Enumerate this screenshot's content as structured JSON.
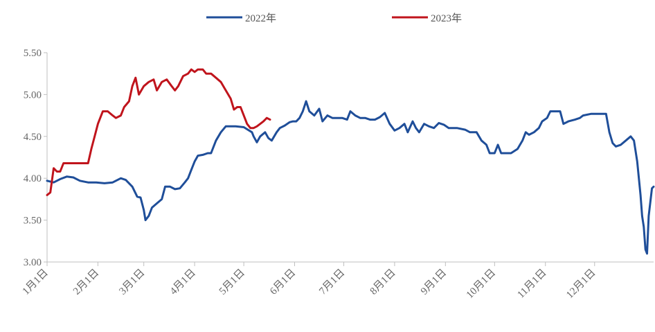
{
  "chart_data": {
    "type": "line",
    "title": "",
    "xlabel": "",
    "ylabel": "",
    "ylim": [
      3.0,
      5.5
    ],
    "yticks": [
      "3.00",
      "3.50",
      "4.00",
      "4.50",
      "5.00",
      "5.50"
    ],
    "xticks": [
      "1月1日",
      "2月1日",
      "3月1日",
      "4月1日",
      "5月1日",
      "6月1日",
      "7月1日",
      "8月1日",
      "9月1日",
      "10月1日",
      "11月1日",
      "12月1日"
    ],
    "grid": false,
    "legend": "top-center",
    "series": [
      {
        "name": "2022年",
        "color": "#1f4e99",
        "points": [
          [
            0,
            3.97
          ],
          [
            4,
            3.95
          ],
          [
            8,
            3.99
          ],
          [
            12,
            4.02
          ],
          [
            16,
            4.01
          ],
          [
            20,
            3.97
          ],
          [
            25,
            3.95
          ],
          [
            30,
            3.95
          ],
          [
            35,
            3.94
          ],
          [
            40,
            3.95
          ],
          [
            45,
            4.0
          ],
          [
            48,
            3.98
          ],
          [
            52,
            3.9
          ],
          [
            55,
            3.78
          ],
          [
            57,
            3.77
          ],
          [
            59,
            3.62
          ],
          [
            60,
            3.5
          ],
          [
            62,
            3.55
          ],
          [
            64,
            3.65
          ],
          [
            67,
            3.7
          ],
          [
            70,
            3.75
          ],
          [
            72,
            3.9
          ],
          [
            75,
            3.9
          ],
          [
            78,
            3.87
          ],
          [
            81,
            3.88
          ],
          [
            84,
            3.95
          ],
          [
            86,
            4.0
          ],
          [
            88,
            4.1
          ],
          [
            90,
            4.2
          ],
          [
            92,
            4.27
          ],
          [
            95,
            4.28
          ],
          [
            98,
            4.3
          ],
          [
            100,
            4.3
          ],
          [
            103,
            4.45
          ],
          [
            106,
            4.55
          ],
          [
            109,
            4.62
          ],
          [
            115,
            4.62
          ],
          [
            120,
            4.61
          ],
          [
            125,
            4.55
          ],
          [
            126,
            4.5
          ],
          [
            128,
            4.43
          ],
          [
            130,
            4.5
          ],
          [
            133,
            4.55
          ],
          [
            135,
            4.48
          ],
          [
            137,
            4.45
          ],
          [
            140,
            4.55
          ],
          [
            142,
            4.6
          ],
          [
            145,
            4.63
          ],
          [
            148,
            4.67
          ],
          [
            150,
            4.68
          ],
          [
            152,
            4.68
          ],
          [
            154,
            4.72
          ],
          [
            156,
            4.8
          ],
          [
            158,
            4.92
          ],
          [
            160,
            4.8
          ],
          [
            163,
            4.75
          ],
          [
            166,
            4.83
          ],
          [
            168,
            4.68
          ],
          [
            171,
            4.75
          ],
          [
            174,
            4.72
          ],
          [
            180,
            4.72
          ],
          [
            183,
            4.7
          ],
          [
            185,
            4.8
          ],
          [
            188,
            4.75
          ],
          [
            191,
            4.72
          ],
          [
            194,
            4.72
          ],
          [
            197,
            4.7
          ],
          [
            200,
            4.7
          ],
          [
            203,
            4.73
          ],
          [
            206,
            4.78
          ],
          [
            209,
            4.65
          ],
          [
            212,
            4.57
          ],
          [
            215,
            4.6
          ],
          [
            218,
            4.65
          ],
          [
            220,
            4.55
          ],
          [
            223,
            4.68
          ],
          [
            225,
            4.6
          ],
          [
            227,
            4.55
          ],
          [
            230,
            4.65
          ],
          [
            233,
            4.62
          ],
          [
            236,
            4.6
          ],
          [
            239,
            4.66
          ],
          [
            242,
            4.64
          ],
          [
            245,
            4.6
          ],
          [
            250,
            4.6
          ],
          [
            255,
            4.58
          ],
          [
            258,
            4.55
          ],
          [
            262,
            4.55
          ],
          [
            265,
            4.45
          ],
          [
            268,
            4.4
          ],
          [
            270,
            4.3
          ],
          [
            273,
            4.3
          ],
          [
            275,
            4.4
          ],
          [
            277,
            4.3
          ],
          [
            283,
            4.3
          ],
          [
            287,
            4.35
          ],
          [
            290,
            4.45
          ],
          [
            292,
            4.55
          ],
          [
            294,
            4.52
          ],
          [
            297,
            4.55
          ],
          [
            300,
            4.6
          ],
          [
            302,
            4.68
          ],
          [
            305,
            4.72
          ],
          [
            307,
            4.8
          ],
          [
            310,
            4.8
          ],
          [
            313,
            4.8
          ],
          [
            315,
            4.65
          ],
          [
            318,
            4.68
          ],
          [
            322,
            4.7
          ],
          [
            325,
            4.72
          ],
          [
            327,
            4.75
          ],
          [
            332,
            4.77
          ],
          [
            337,
            4.77
          ],
          [
            341,
            4.77
          ],
          [
            343,
            4.55
          ],
          [
            345,
            4.42
          ],
          [
            347,
            4.38
          ],
          [
            350,
            4.4
          ],
          [
            353,
            4.45
          ],
          [
            356,
            4.5
          ],
          [
            358,
            4.45
          ],
          [
            360,
            4.2
          ],
          [
            362,
            3.8
          ],
          [
            363,
            3.55
          ],
          [
            364,
            3.42
          ],
          [
            365,
            3.15
          ],
          [
            366,
            3.1
          ],
          [
            367,
            3.55
          ],
          [
            369,
            3.88
          ],
          [
            370,
            3.9
          ]
        ]
      },
      {
        "name": "2023年",
        "color": "#c0141c",
        "points": [
          [
            0,
            3.8
          ],
          [
            2,
            3.83
          ],
          [
            4,
            4.12
          ],
          [
            6,
            4.08
          ],
          [
            8,
            4.08
          ],
          [
            10,
            4.18
          ],
          [
            15,
            4.18
          ],
          [
            20,
            4.18
          ],
          [
            25,
            4.18
          ],
          [
            27,
            4.35
          ],
          [
            29,
            4.5
          ],
          [
            31,
            4.65
          ],
          [
            34,
            4.8
          ],
          [
            37,
            4.8
          ],
          [
            40,
            4.75
          ],
          [
            42,
            4.72
          ],
          [
            45,
            4.75
          ],
          [
            47,
            4.85
          ],
          [
            50,
            4.92
          ],
          [
            52,
            5.1
          ],
          [
            54,
            5.2
          ],
          [
            56,
            5.0
          ],
          [
            59,
            5.1
          ],
          [
            62,
            5.15
          ],
          [
            65,
            5.18
          ],
          [
            67,
            5.05
          ],
          [
            70,
            5.15
          ],
          [
            73,
            5.18
          ],
          [
            76,
            5.1
          ],
          [
            78,
            5.05
          ],
          [
            80,
            5.1
          ],
          [
            83,
            5.22
          ],
          [
            86,
            5.25
          ],
          [
            88,
            5.3
          ],
          [
            90,
            5.27
          ],
          [
            92,
            5.3
          ],
          [
            95,
            5.3
          ],
          [
            97,
            5.25
          ],
          [
            100,
            5.25
          ],
          [
            103,
            5.2
          ],
          [
            106,
            5.15
          ],
          [
            109,
            5.05
          ],
          [
            112,
            4.95
          ],
          [
            114,
            4.82
          ],
          [
            116,
            4.85
          ],
          [
            118,
            4.85
          ],
          [
            120,
            4.75
          ],
          [
            122,
            4.65
          ],
          [
            124,
            4.6
          ],
          [
            126,
            4.6
          ],
          [
            128,
            4.62
          ],
          [
            130,
            4.65
          ],
          [
            132,
            4.68
          ],
          [
            134,
            4.72
          ],
          [
            136,
            4.7
          ]
        ]
      }
    ]
  }
}
